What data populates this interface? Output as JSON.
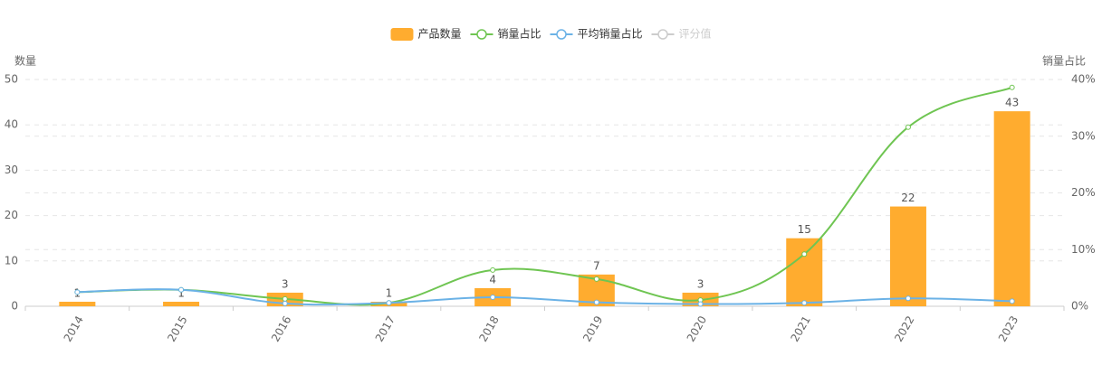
{
  "chart_data": {
    "type": "bar_line",
    "y_axis_label": "数量",
    "y2_axis_label": "销量占比",
    "categories": [
      "2014",
      "2015",
      "2016",
      "2017",
      "2018",
      "2019",
      "2020",
      "2021",
      "2022",
      "2023"
    ],
    "series": [
      {
        "name": "产品数量",
        "type": "bar",
        "color": "#ffac2f",
        "values": [
          1,
          1,
          3,
          1,
          4,
          7,
          3,
          15,
          22,
          43
        ]
      },
      {
        "name": "销量占比",
        "type": "line",
        "axis": "y2",
        "color": "#6fc552",
        "values": [
          2.5,
          2.9,
          1.3,
          0.6,
          6.4,
          4.8,
          1.1,
          9.2,
          31.6,
          38.6
        ]
      },
      {
        "name": "平均销量占比",
        "type": "line",
        "axis": "y2",
        "color": "#6bb2e6",
        "values": [
          2.5,
          2.9,
          0.5,
          0.6,
          1.6,
          0.7,
          0.4,
          0.6,
          1.4,
          0.9
        ]
      }
    ],
    "inactive_legend": [
      "评分值"
    ],
    "ylim": [
      0,
      50
    ],
    "yticks": [
      0,
      10,
      20,
      30,
      40,
      50
    ],
    "y2lim": [
      0,
      40
    ],
    "y2ticks": [
      {
        "value": 0,
        "label": "0%"
      },
      {
        "value": 10,
        "label": "10%"
      },
      {
        "value": 20,
        "label": "20%"
      },
      {
        "value": 30,
        "label": "30%"
      },
      {
        "value": 40,
        "label": "40%"
      }
    ],
    "grid": true
  }
}
